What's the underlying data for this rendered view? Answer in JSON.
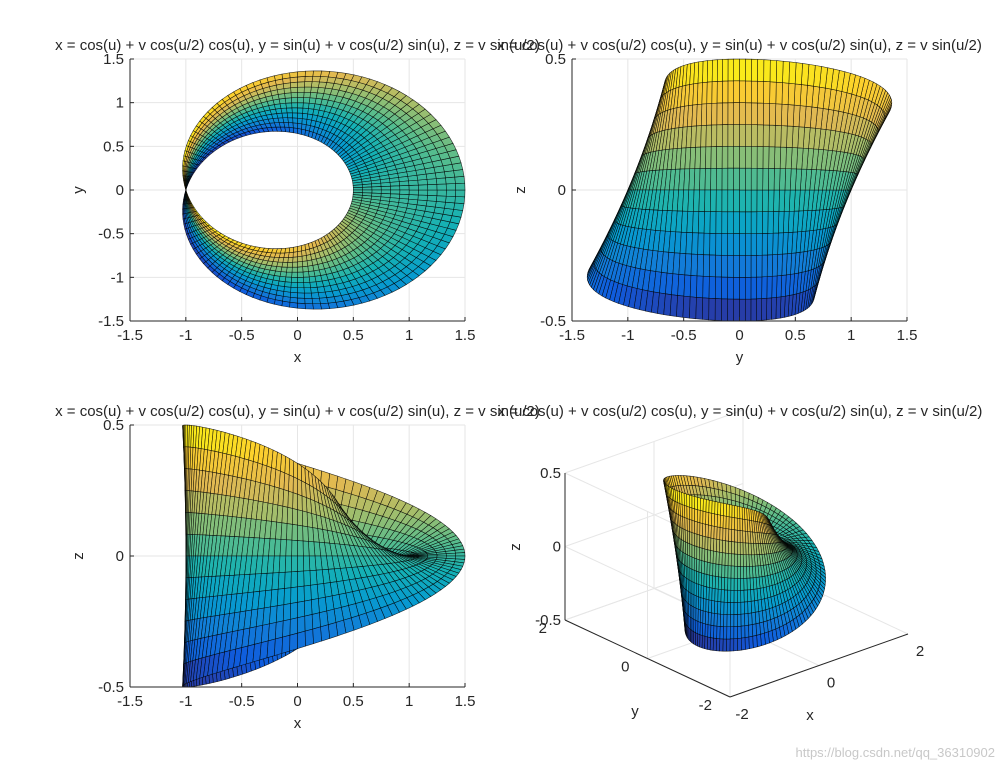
{
  "chart_data": [
    {
      "type": "surface",
      "view": "top (x-y)",
      "title": "x = cos(u) + v cos(u/2) cos(u), y = sin(u) + v cos(u/2) sin(u), z = v sin(u/2)",
      "xlabel": "x",
      "ylabel": "y",
      "xlim": [
        -1.5,
        1.5
      ],
      "ylim": [
        -1.5,
        1.5
      ],
      "xticks": [
        "-1.5",
        "-1",
        "-0.5",
        "0",
        "0.5",
        "1",
        "1.5"
      ],
      "yticks": [
        "-1.5",
        "-1",
        "-0.5",
        "0",
        "0.5",
        "1",
        "1.5"
      ],
      "u_range": [
        0,
        6.2832
      ],
      "v_range": [
        -0.5,
        0.5
      ],
      "colormap": "parula",
      "grid": true
    },
    {
      "type": "surface",
      "view": "side (y-z)",
      "title": "x = cos(u) + v cos(u/2) cos(u), y = sin(u) + v cos(u/2) sin(u), z = v sin(u/2)",
      "xlabel": "y",
      "ylabel": "z",
      "xlim": [
        -1.5,
        1.5
      ],
      "ylim": [
        -0.5,
        0.5
      ],
      "xticks": [
        "-1.5",
        "-1",
        "-0.5",
        "0",
        "0.5",
        "1",
        "1.5"
      ],
      "yticks": [
        "-0.5",
        "0",
        "0.5"
      ],
      "u_range": [
        0,
        6.2832
      ],
      "v_range": [
        -0.5,
        0.5
      ],
      "colormap": "parula",
      "grid": true
    },
    {
      "type": "surface",
      "view": "side (x-z)",
      "title": "x = cos(u) + v cos(u/2) cos(u), y = sin(u) + v cos(u/2) sin(u), z = v sin(u/2)",
      "xlabel": "x",
      "ylabel": "z",
      "xlim": [
        -1.5,
        1.5
      ],
      "ylim": [
        -0.5,
        0.5
      ],
      "xticks": [
        "-1.5",
        "-1",
        "-0.5",
        "0",
        "0.5",
        "1",
        "1.5"
      ],
      "yticks": [
        "-0.5",
        "0",
        "0.5"
      ],
      "u_range": [
        0,
        6.2832
      ],
      "v_range": [
        -0.5,
        0.5
      ],
      "colormap": "parula",
      "grid": true
    },
    {
      "type": "surface",
      "view": "3D",
      "title": "x = cos(u) + v cos(u/2) cos(u), y = sin(u) + v cos(u/2) sin(u), z = v sin(u/2)",
      "xlabel": "x",
      "ylabel": "y",
      "zlabel": "z",
      "xlim": [
        -2,
        2
      ],
      "ylim": [
        -2,
        2
      ],
      "zlim": [
        -0.5,
        0.5
      ],
      "xticks": [
        "-2",
        "0",
        "2"
      ],
      "yticks": [
        "-2",
        "0",
        "2"
      ],
      "zticks": [
        "-0.5",
        "0",
        "0.5"
      ],
      "u_range": [
        0,
        6.2832
      ],
      "v_range": [
        -0.5,
        0.5
      ],
      "colormap": "parula",
      "grid": true
    }
  ],
  "watermark": "https://blog.csdn.net/qq_36310902"
}
